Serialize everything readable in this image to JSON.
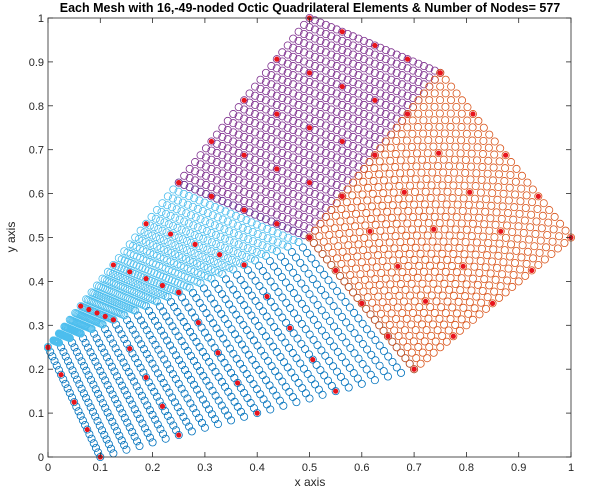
{
  "chart_data": {
    "type": "scatter",
    "title": "Each Mesh with 16,-49-noded Octic Quadrilateral Elements & Number of Nodes= 577",
    "xlabel": "x axis",
    "ylabel": "y axis",
    "xlim": [
      0,
      1
    ],
    "ylim": [
      0,
      1
    ],
    "xticks": [
      "0",
      "0.1",
      "0.2",
      "0.3",
      "0.4",
      "0.5",
      "0.6",
      "0.7",
      "0.8",
      "0.9",
      "1"
    ],
    "yticks": [
      "0",
      "0.1",
      "0.2",
      "0.3",
      "0.4",
      "0.5",
      "0.6",
      "0.7",
      "0.8",
      "0.9",
      "1"
    ],
    "grid": false,
    "marker": "open-circle",
    "vertex_color": "#e8141c",
    "submeshes": [
      {
        "color": "#0072bd",
        "corners": [
          [
            0.1,
            0.0
          ],
          [
            0.7,
            0.2
          ],
          [
            0.5,
            0.5
          ],
          [
            0.0,
            0.25
          ]
        ]
      },
      {
        "color": "#4dbeee",
        "corners": [
          [
            0.0,
            0.25
          ],
          [
            0.5,
            0.5
          ],
          [
            0.25,
            0.625
          ],
          [
            0.0,
            0.25
          ]
        ]
      },
      {
        "color": "#7e2f8e",
        "corners": [
          [
            0.25,
            0.625
          ],
          [
            0.5,
            0.5
          ],
          [
            0.75,
            0.875
          ],
          [
            0.5,
            1.0
          ]
        ]
      },
      {
        "color": "#d95319",
        "corners": [
          [
            0.5,
            0.5
          ],
          [
            0.7,
            0.2
          ],
          [
            1.0,
            0.5
          ],
          [
            0.75,
            0.875
          ]
        ]
      }
    ],
    "elements_per_side": 4,
    "nodes_per_element_side": 7
  }
}
